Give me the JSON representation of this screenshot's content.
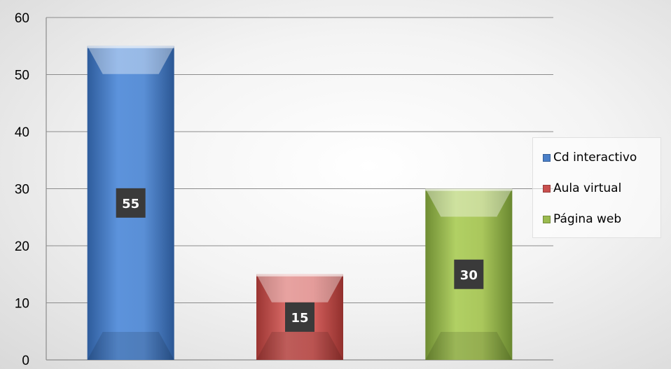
{
  "chart_data": {
    "type": "bar",
    "title": "",
    "xlabel": "",
    "ylabel": "",
    "ylim": [
      0,
      60
    ],
    "yticks": [
      0,
      10,
      20,
      30,
      40,
      50,
      60
    ],
    "grid": true,
    "legend_position": "right",
    "categories": [
      "Cd interactivo",
      "Aula virtual",
      "Página web"
    ],
    "values": [
      55,
      15,
      30
    ],
    "colors": [
      "#4a7fc8",
      "#c9504e",
      "#9bbb4f"
    ],
    "data_labels": [
      "55",
      "15",
      "30"
    ]
  },
  "legend": {
    "items": [
      {
        "label": "Cd interactivo",
        "color": "#4a7fc8"
      },
      {
        "label": "Aula virtual",
        "color": "#c9504e"
      },
      {
        "label": "Página web",
        "color": "#9bbb4f"
      }
    ]
  }
}
